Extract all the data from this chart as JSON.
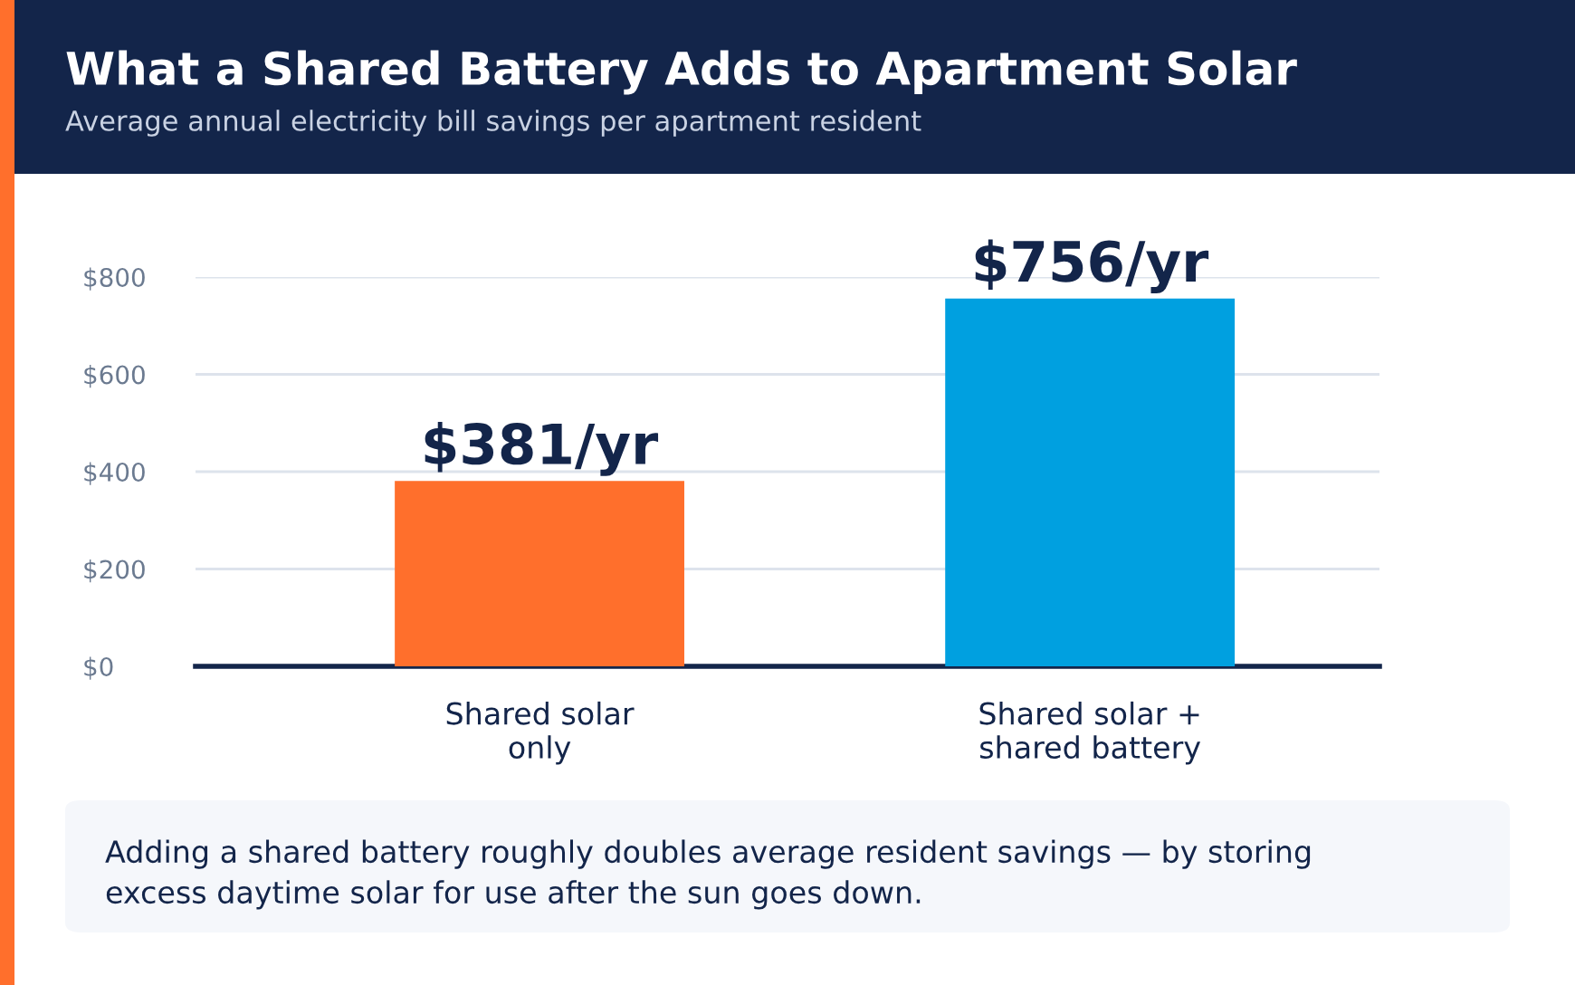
{
  "chart_data": {
    "type": "bar",
    "title": "What a Shared Battery Adds to Apartment Solar",
    "subtitle": "Average annual electricity bill savings per apartment resident",
    "categories": [
      "Shared solar\nonly",
      "Shared solar +\nshared battery"
    ],
    "values": [
      381,
      756
    ],
    "colors": [
      "#ff6f2c",
      "#00a0e0"
    ],
    "value_labels": [
      "$381/yr",
      "$756/yr"
    ],
    "ylim": [
      0,
      800
    ],
    "yticks": [
      {
        "value": 0,
        "label": "$0"
      },
      {
        "value": 200,
        "label": "$200"
      },
      {
        "value": 400,
        "label": "$400"
      },
      {
        "value": 600,
        "label": "$600"
      },
      {
        "value": 800,
        "label": "$800"
      }
    ],
    "grid": "y",
    "legend": false,
    "annotations": [
      "Adding a shared battery roughly doubles average resident savings — by storing\nexcess daytime solar for use after the sun goes down."
    ]
  }
}
